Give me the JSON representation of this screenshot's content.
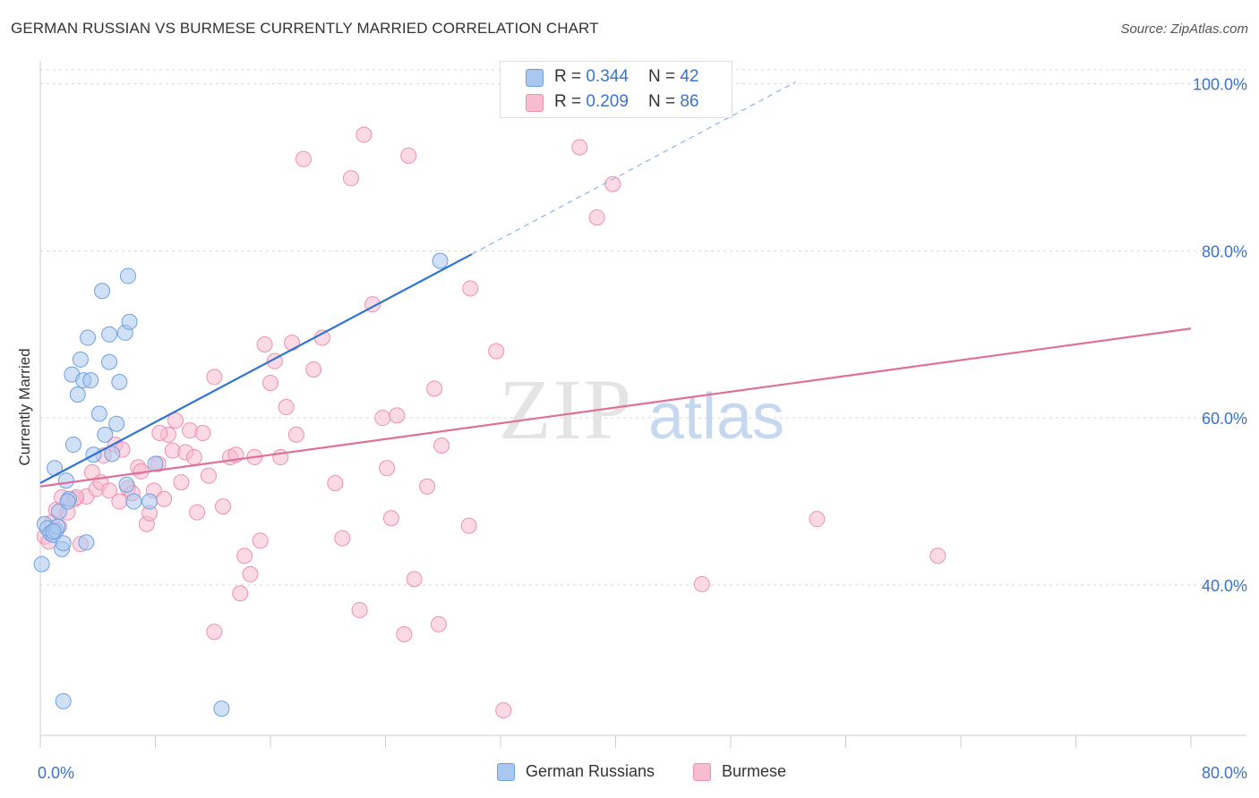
{
  "title": "GERMAN RUSSIAN VS BURMESE CURRENTLY MARRIED CORRELATION CHART",
  "source": "Source: ZipAtlas.com",
  "watermark": {
    "zip": "ZIP",
    "atlas": "atlas"
  },
  "legend_top": {
    "rows": [
      {
        "r_label": "R =",
        "r_value": "0.344",
        "n_label": "N =",
        "n_value": "42"
      },
      {
        "r_label": "R =",
        "r_value": "0.209",
        "n_label": "N =",
        "n_value": "86"
      }
    ]
  },
  "legend_bottom": {
    "items": [
      "German Russians",
      "Burmese"
    ]
  },
  "colors": {
    "blue_fill": "#a9c8f0",
    "blue_stroke": "#6f9fe0",
    "blue_line": "#2f74d0",
    "pink_fill": "#f7bcd0",
    "pink_stroke": "#ee90b0",
    "pink_line": "#e0709a",
    "tick_label": "#3a73c9",
    "grid": "#d8d8d8"
  },
  "chart_data": {
    "type": "scatter",
    "title": "GERMAN RUSSIAN VS BURMESE CURRENTLY MARRIED CORRELATION CHART",
    "xlabel": "",
    "ylabel": "Currently Married",
    "xlim": [
      0,
      80
    ],
    "ylim": [
      22,
      102
    ],
    "x_tick_labels": [
      {
        "value": 0,
        "label": "0.0%"
      },
      {
        "value": 80,
        "label": "80.0%"
      }
    ],
    "y_tick_labels": [
      {
        "value": 40,
        "label": "40.0%"
      },
      {
        "value": 60,
        "label": "60.0%"
      },
      {
        "value": 80,
        "label": "80.0%"
      },
      {
        "value": 100,
        "label": "100.0%"
      }
    ],
    "series": [
      {
        "name": "German Russians",
        "r": 0.344,
        "n": 42,
        "trend": {
          "x0": 0,
          "y0": 52.2,
          "x1": 30,
          "y1": 79.6,
          "dash_to_x": 52.5,
          "dash_to_y": 100.2
        },
        "points": [
          [
            0.1,
            42.5
          ],
          [
            0.3,
            47.3
          ],
          [
            0.5,
            46.8
          ],
          [
            0.7,
            46.2
          ],
          [
            0.9,
            46.0
          ],
          [
            1.1,
            46.5
          ],
          [
            1.2,
            47.0
          ],
          [
            1.0,
            54.0
          ],
          [
            1.3,
            48.8
          ],
          [
            1.5,
            44.3
          ],
          [
            1.6,
            45.0
          ],
          [
            1.8,
            52.5
          ],
          [
            2.0,
            50.3
          ],
          [
            1.9,
            50.0
          ],
          [
            2.3,
            56.8
          ],
          [
            2.2,
            65.2
          ],
          [
            2.6,
            62.8
          ],
          [
            2.8,
            67.0
          ],
          [
            3.0,
            64.5
          ],
          [
            3.2,
            45.1
          ],
          [
            3.3,
            69.6
          ],
          [
            3.5,
            64.5
          ],
          [
            3.7,
            55.6
          ],
          [
            4.1,
            60.5
          ],
          [
            4.3,
            75.2
          ],
          [
            4.5,
            58.0
          ],
          [
            4.8,
            66.7
          ],
          [
            5.0,
            55.7
          ],
          [
            5.3,
            59.3
          ],
          [
            5.5,
            64.3
          ],
          [
            5.9,
            70.2
          ],
          [
            6.1,
            77.0
          ],
          [
            6.2,
            71.5
          ],
          [
            4.8,
            70.0
          ],
          [
            6.5,
            50.0
          ],
          [
            7.6,
            50.0
          ],
          [
            8.0,
            54.5
          ],
          [
            1.6,
            26.1
          ],
          [
            12.6,
            25.2
          ],
          [
            27.8,
            78.8
          ],
          [
            0.9,
            46.4
          ],
          [
            6.0,
            52.0
          ]
        ]
      },
      {
        "name": "Burmese",
        "r": 0.209,
        "n": 86,
        "trend": {
          "x0": 0,
          "y0": 51.8,
          "x1": 80,
          "y1": 70.7
        },
        "points": [
          [
            0.3,
            45.8
          ],
          [
            0.6,
            45.2
          ],
          [
            0.8,
            47.5
          ],
          [
            1.1,
            49.0
          ],
          [
            1.3,
            47.0
          ],
          [
            1.5,
            50.5
          ],
          [
            1.9,
            48.7
          ],
          [
            2.4,
            50.3
          ],
          [
            2.8,
            44.9
          ],
          [
            3.2,
            50.6
          ],
          [
            3.6,
            53.5
          ],
          [
            3.9,
            51.5
          ],
          [
            4.2,
            52.3
          ],
          [
            4.4,
            55.5
          ],
          [
            4.8,
            51.3
          ],
          [
            5.2,
            56.8
          ],
          [
            5.5,
            50.0
          ],
          [
            5.7,
            56.2
          ],
          [
            6.1,
            51.6
          ],
          [
            6.4,
            51.0
          ],
          [
            6.8,
            54.1
          ],
          [
            7.0,
            53.6
          ],
          [
            7.4,
            47.3
          ],
          [
            7.6,
            48.6
          ],
          [
            7.9,
            51.3
          ],
          [
            8.2,
            54.5
          ],
          [
            8.6,
            50.3
          ],
          [
            8.9,
            58.0
          ],
          [
            9.2,
            56.1
          ],
          [
            9.4,
            59.7
          ],
          [
            9.8,
            52.3
          ],
          [
            10.1,
            55.9
          ],
          [
            10.4,
            58.5
          ],
          [
            10.7,
            55.3
          ],
          [
            10.9,
            48.7
          ],
          [
            11.3,
            58.2
          ],
          [
            11.7,
            53.1
          ],
          [
            12.1,
            64.9
          ],
          [
            12.7,
            49.4
          ],
          [
            13.2,
            55.3
          ],
          [
            13.6,
            55.6
          ],
          [
            13.9,
            39.0
          ],
          [
            14.2,
            43.5
          ],
          [
            14.6,
            41.3
          ],
          [
            14.9,
            55.3
          ],
          [
            15.3,
            45.3
          ],
          [
            15.6,
            68.8
          ],
          [
            16.0,
            64.2
          ],
          [
            16.3,
            66.8
          ],
          [
            16.7,
            55.3
          ],
          [
            17.1,
            61.3
          ],
          [
            17.5,
            69.0
          ],
          [
            17.8,
            58.0
          ],
          [
            18.3,
            91.0
          ],
          [
            19.0,
            65.8
          ],
          [
            19.6,
            69.6
          ],
          [
            20.5,
            52.2
          ],
          [
            21.0,
            45.6
          ],
          [
            21.6,
            88.7
          ],
          [
            22.2,
            37.0
          ],
          [
            22.5,
            93.9
          ],
          [
            23.1,
            73.6
          ],
          [
            23.8,
            60.0
          ],
          [
            24.1,
            54.0
          ],
          [
            24.4,
            48.0
          ],
          [
            24.8,
            60.3
          ],
          [
            25.3,
            34.1
          ],
          [
            25.6,
            91.4
          ],
          [
            26.0,
            40.7
          ],
          [
            26.9,
            51.8
          ],
          [
            27.4,
            63.5
          ],
          [
            27.7,
            35.3
          ],
          [
            27.9,
            56.7
          ],
          [
            29.8,
            47.1
          ],
          [
            29.9,
            75.5
          ],
          [
            31.7,
            68.0
          ],
          [
            32.2,
            25.0
          ],
          [
            37.5,
            92.4
          ],
          [
            38.7,
            84.0
          ],
          [
            39.8,
            88.0
          ],
          [
            46.0,
            40.1
          ],
          [
            54.0,
            47.9
          ],
          [
            62.4,
            43.5
          ],
          [
            8.3,
            58.2
          ],
          [
            12.1,
            34.4
          ],
          [
            2.5,
            50.5
          ]
        ]
      }
    ]
  }
}
